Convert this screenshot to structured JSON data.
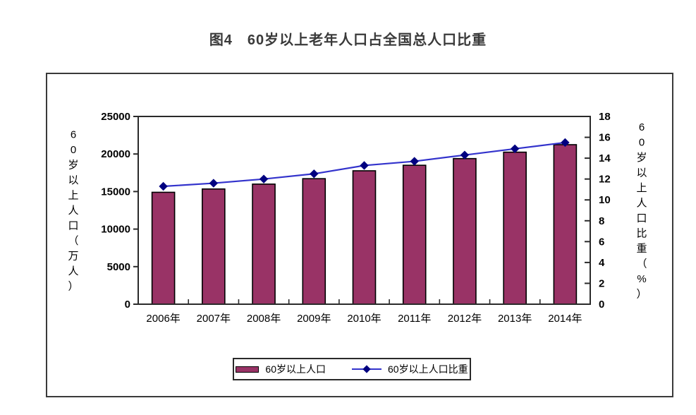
{
  "page": {
    "figure_caption": "图4　60岁以上老年人口占全国总人口比重"
  },
  "colors": {
    "bar_fill": "#993366",
    "bar_border": "#000000",
    "line": "#3333CC",
    "marker": "#000080",
    "axis": "#2a2a2a",
    "text": "#000000",
    "frame_border": "#3a3a3a",
    "plot_background": "#FFFFFF"
  },
  "chart_data": {
    "type": "bar",
    "subtype": "combo-bar-line",
    "title": "图4　60岁以上老年人口占全国总人口比重",
    "categories": [
      "2006年",
      "2007年",
      "2008年",
      "2009年",
      "2010年",
      "2011年",
      "2012年",
      "2013年",
      "2014年"
    ],
    "series": [
      {
        "name": "60岁以上人口",
        "type": "bar",
        "axis": "left",
        "color": "#993366",
        "values": [
          14901,
          15340,
          15989,
          16714,
          17765,
          18499,
          19390,
          20243,
          21242
        ]
      },
      {
        "name": "60岁以上人口比重",
        "type": "line",
        "axis": "right",
        "color": "#3333CC",
        "marker": "diamond",
        "marker_color": "#000080",
        "values": [
          11.3,
          11.6,
          12.0,
          12.5,
          13.3,
          13.7,
          14.3,
          14.9,
          15.5
        ]
      }
    ],
    "left_axis": {
      "label": "60岁以上人口（万人）",
      "min": 0,
      "max": 25000,
      "step": 5000,
      "ticks": [
        0,
        5000,
        10000,
        15000,
        20000,
        25000
      ]
    },
    "right_axis": {
      "label": "60岁以上人口比重（%）",
      "min": 0,
      "max": 18,
      "step": 2,
      "ticks": [
        0,
        2,
        4,
        6,
        8,
        10,
        12,
        14,
        16,
        18
      ]
    },
    "legend": {
      "position": "bottom",
      "entries": [
        "60岁以上人口",
        "60岁以上人口比重"
      ]
    },
    "grid": false,
    "plot_bg": "#FFFFFF"
  }
}
